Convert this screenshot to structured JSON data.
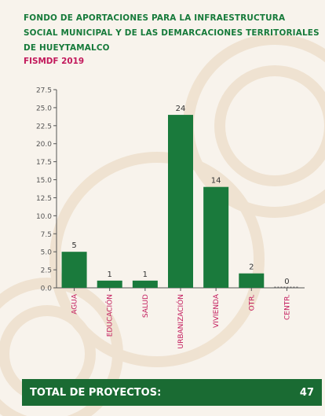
{
  "header": {
    "title": "FONDO DE APORTACIONES PARA LA INFRAESTRUCTURA SOCIAL MUNICIPAL Y DE LAS DEMARCACIONES TERRITORIALES DE HUEYTAMALCO",
    "subtitle": "FISMDF 2019"
  },
  "chart_data": {
    "type": "bar",
    "categories": [
      "AGUA",
      "EDUCACIÓN",
      "SALUD",
      "URBANIZACIÓN",
      "VIVIENDA",
      "OTR.",
      "CENTR."
    ],
    "values": [
      5,
      1,
      1,
      24,
      14,
      2,
      0
    ],
    "data_labels": [
      "5",
      "1",
      "1",
      "24",
      "14",
      "2",
      "0"
    ],
    "yticks": [
      "0.0",
      "2.5",
      "5.0",
      "7.5",
      "10.0",
      "12.5",
      "15.0",
      "17.5",
      "20.0",
      "22.5",
      "25.0",
      "27.5"
    ],
    "ylim": [
      0,
      27.5
    ],
    "grid": false,
    "legend": "none",
    "colors": {
      "bar": "#1a7a3c",
      "axis": "#555555",
      "category_label": "#c2185b"
    }
  },
  "footer": {
    "label": "TOTAL DE PROYECTOS:",
    "value": "47"
  }
}
